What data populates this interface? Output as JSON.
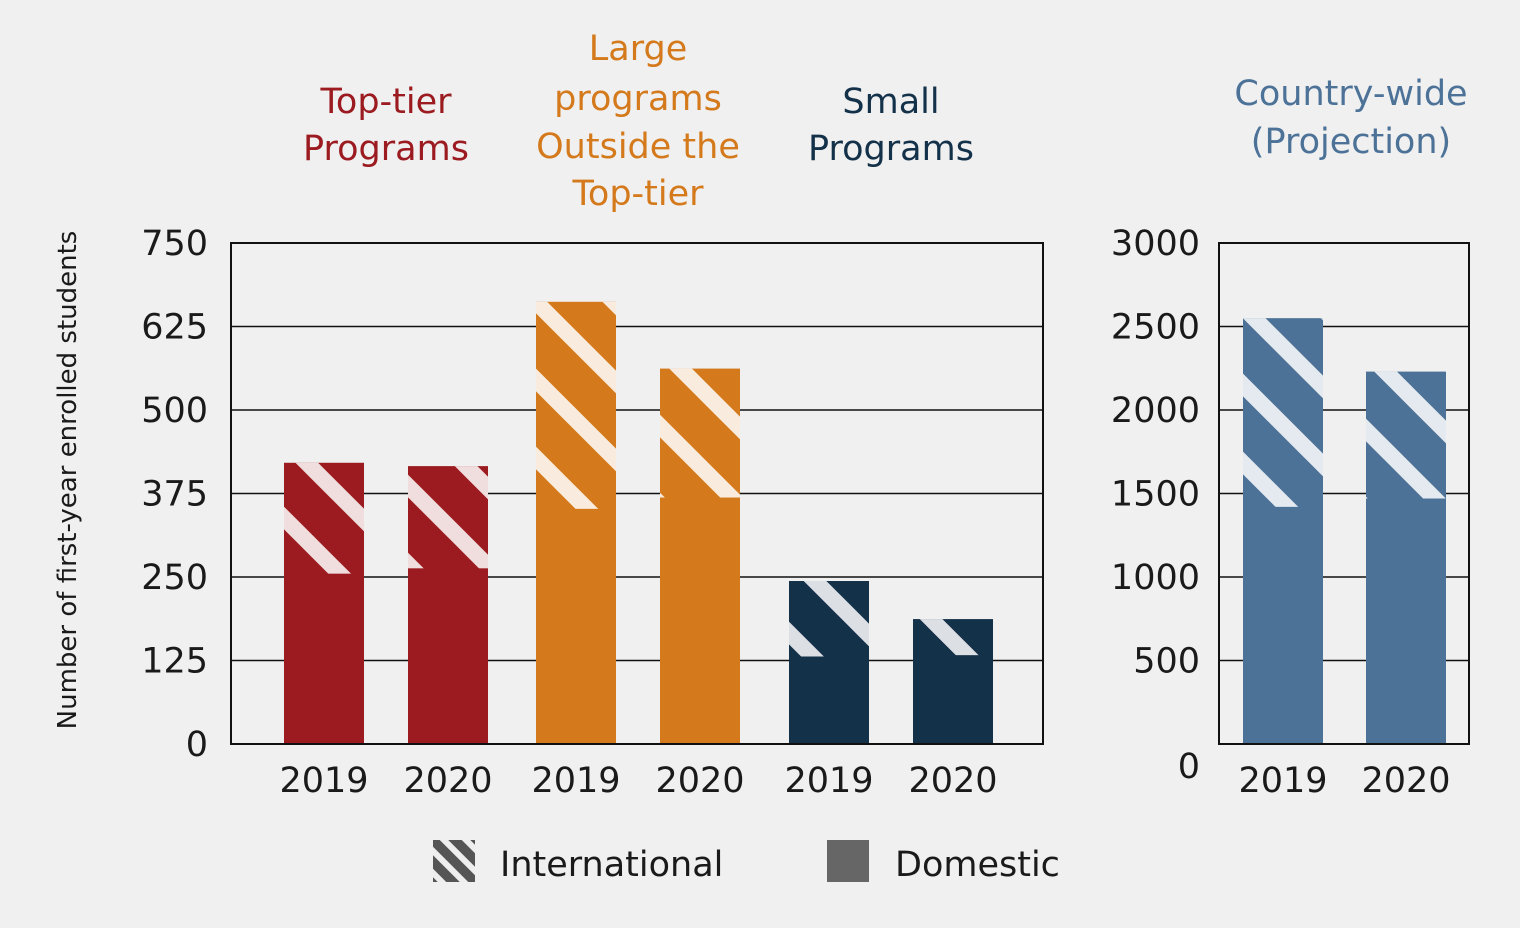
{
  "chart_data": [
    {
      "type": "bar",
      "stacked": true,
      "ylabel": "Number of first-year enrolled students",
      "ylim": [
        0,
        750
      ],
      "yticks": [
        0,
        125,
        250,
        375,
        500,
        625,
        750
      ],
      "grid": true,
      "groups": [
        {
          "title_lines": [
            "Top-tier",
            "Programs"
          ],
          "color": "#9b1b20",
          "categories": [
            "2019",
            "2020"
          ],
          "series": [
            {
              "name": "Domestic",
              "values": [
                255,
                263
              ]
            },
            {
              "name": "International",
              "values": [
                166,
                153
              ]
            }
          ]
        },
        {
          "title_lines": [
            "Large",
            "programs",
            "Outside the",
            "Top-tier"
          ],
          "color": "#d47a1c",
          "categories": [
            "2019",
            "2020"
          ],
          "series": [
            {
              "name": "Domestic",
              "values": [
                352,
                369
              ]
            },
            {
              "name": "International",
              "values": [
                310,
                193
              ]
            }
          ]
        },
        {
          "title_lines": [
            "Small",
            "Programs"
          ],
          "color": "#14314a",
          "categories": [
            "2019",
            "2020"
          ],
          "series": [
            {
              "name": "Domestic",
              "values": [
                131,
                133
              ]
            },
            {
              "name": "International",
              "values": [
                113,
                54
              ]
            }
          ]
        }
      ]
    },
    {
      "type": "bar",
      "stacked": true,
      "title_lines": [
        "Country-wide",
        "(Projection)"
      ],
      "color": "#4d7298",
      "ylim": [
        0,
        3000
      ],
      "yticks": [
        0,
        500,
        1000,
        1500,
        2000,
        2500,
        3000
      ],
      "grid": true,
      "categories": [
        "2019",
        "2020"
      ],
      "series": [
        {
          "name": "Domestic",
          "values": [
            1420,
            1470
          ]
        },
        {
          "name": "International",
          "values": [
            1130,
            760
          ]
        }
      ]
    }
  ],
  "legend": {
    "items": [
      {
        "label": "International",
        "icon": "hatched-square-icon",
        "color": "#555555"
      },
      {
        "label": "Domestic",
        "icon": "solid-square-icon",
        "color": "#666666"
      }
    ]
  }
}
